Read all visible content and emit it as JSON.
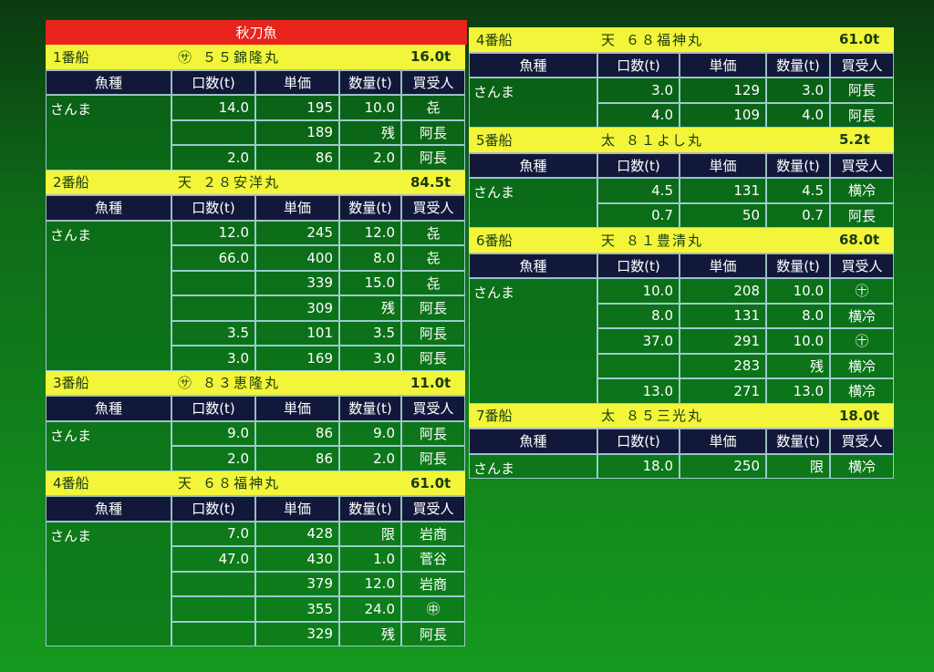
{
  "title": "秋刀魚",
  "columns": [
    "魚種",
    "口数(t)",
    "単価",
    "数量(t)",
    "買受人"
  ],
  "left": [
    {
      "number": "1番船",
      "mark": "㋚",
      "ship": "５５錦隆丸",
      "total": "16.0t",
      "fish": "さんま",
      "rows": [
        [
          "14.0",
          "195",
          "10.0",
          "㐂"
        ],
        [
          null,
          "189",
          "残",
          "阿長"
        ],
        [
          "2.0",
          "86",
          "2.0",
          "阿長"
        ]
      ]
    },
    {
      "number": "2番船",
      "mark": "天",
      "ship": "２８安洋丸",
      "total": "84.5t",
      "fish": "さんま",
      "rows": [
        [
          "12.0",
          "245",
          "12.0",
          "㐂"
        ],
        [
          "66.0",
          "400",
          "8.0",
          "㐂"
        ],
        [
          null,
          "339",
          "15.0",
          "㐂"
        ],
        [
          null,
          "309",
          "残",
          "阿長"
        ],
        [
          "3.5",
          "101",
          "3.5",
          "阿長"
        ],
        [
          "3.0",
          "169",
          "3.0",
          "阿長"
        ]
      ]
    },
    {
      "number": "3番船",
      "mark": "㋚",
      "ship": "８３恵隆丸",
      "total": "11.0t",
      "fish": "さんま",
      "rows": [
        [
          "9.0",
          "86",
          "9.0",
          "阿長"
        ],
        [
          "2.0",
          "86",
          "2.0",
          "阿長"
        ]
      ]
    },
    {
      "number": "4番船",
      "mark": "天",
      "ship": "６８福神丸",
      "total": "61.0t",
      "fish": "さんま",
      "rows": [
        [
          "7.0",
          "428",
          "限",
          "岩商"
        ],
        [
          "47.0",
          "430",
          "1.0",
          "菅谷"
        ],
        [
          null,
          "379",
          "12.0",
          "岩商"
        ],
        [
          null,
          "355",
          "24.0",
          "㊥"
        ],
        [
          null,
          "329",
          "残",
          "阿長"
        ]
      ]
    }
  ],
  "right": [
    {
      "number": "4番船",
      "mark": "天",
      "ship": "６８福神丸",
      "total": "61.0t",
      "fish": "さんま",
      "rows": [
        [
          "3.0",
          "129",
          "3.0",
          "阿長"
        ],
        [
          "4.0",
          "109",
          "4.0",
          "阿長"
        ]
      ]
    },
    {
      "number": "5番船",
      "mark": "太",
      "ship": "８１よし丸",
      "total": "5.2t",
      "fish": "さんま",
      "rows": [
        [
          "4.5",
          "131",
          "4.5",
          "横冷"
        ],
        [
          "0.7",
          "50",
          "0.7",
          "阿長"
        ]
      ]
    },
    {
      "number": "6番船",
      "mark": "天",
      "ship": "８１豊清丸",
      "total": "68.0t",
      "fish": "さんま",
      "rows": [
        [
          "10.0",
          "208",
          "10.0",
          "㊉"
        ],
        [
          "8.0",
          "131",
          "8.0",
          "横冷"
        ],
        [
          "37.0",
          "291",
          "10.0",
          "㊉"
        ],
        [
          null,
          "283",
          "残",
          "横冷"
        ],
        [
          "13.0",
          "271",
          "13.0",
          "横冷"
        ]
      ]
    },
    {
      "number": "7番船",
      "mark": "太",
      "ship": "８５三光丸",
      "total": "18.0t",
      "fish": "さんま",
      "rows": [
        [
          "18.0",
          "250",
          "限",
          "横冷"
        ]
      ]
    }
  ]
}
